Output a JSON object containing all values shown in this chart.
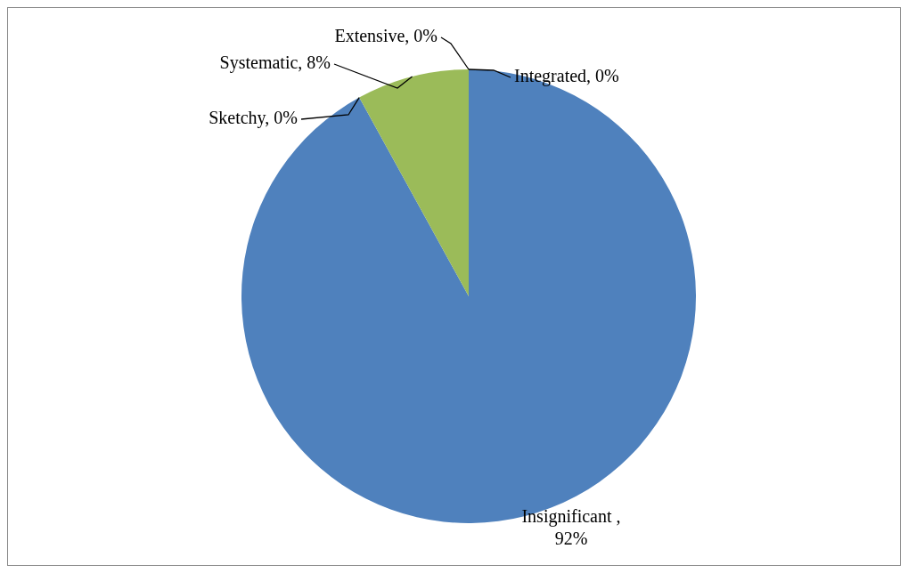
{
  "chart_data": {
    "type": "pie",
    "categories": [
      "Insignificant",
      "Sketchy",
      "Systematic",
      "Extensive",
      "Integrated"
    ],
    "values": [
      92,
      0,
      8,
      0,
      0
    ],
    "colors": [
      "#4f81bd",
      "#c0504d",
      "#9bbb59",
      "#8064a2",
      "#4bacc6"
    ],
    "value_labels": [
      ", 92%",
      ", 0%",
      ", 8%",
      ", 0%",
      ", 0%"
    ]
  }
}
